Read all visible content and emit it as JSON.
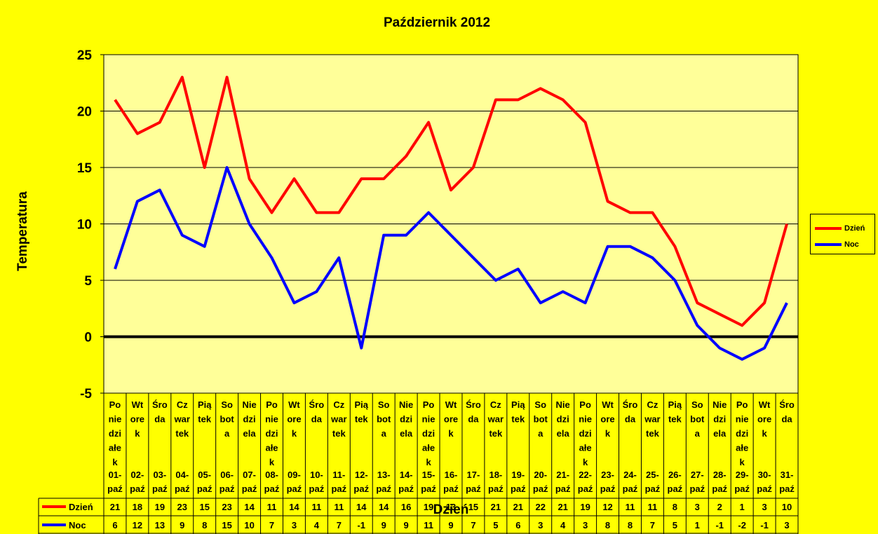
{
  "chart_data": {
    "type": "line",
    "title": "Październik 2012",
    "xlabel": "Dzień",
    "ylabel": "Temperatura",
    "ylim": [
      -5,
      25
    ],
    "yticks": [
      -5,
      0,
      5,
      10,
      15,
      20,
      25
    ],
    "grid": true,
    "legend_position": "right",
    "day_names": [
      [
        "Po",
        "nie",
        "dzi",
        "ałe",
        "k"
      ],
      [
        "Wt",
        "ore",
        "k"
      ],
      [
        "Śro",
        "da"
      ],
      [
        "Cz",
        "war",
        "tek"
      ],
      [
        "Pią",
        "tek"
      ],
      [
        "So",
        "bot",
        "a"
      ],
      [
        "Nie",
        "dzi",
        "ela"
      ],
      [
        "Po",
        "nie",
        "dzi",
        "ałe",
        "k"
      ],
      [
        "Wt",
        "ore",
        "k"
      ],
      [
        "Śro",
        "da"
      ],
      [
        "Cz",
        "war",
        "tek"
      ],
      [
        "Pią",
        "tek"
      ],
      [
        "So",
        "bot",
        "a"
      ],
      [
        "Nie",
        "dzi",
        "ela"
      ],
      [
        "Po",
        "nie",
        "dzi",
        "ałe",
        "k"
      ],
      [
        "Wt",
        "ore",
        "k"
      ],
      [
        "Śro",
        "da"
      ],
      [
        "Cz",
        "war",
        "tek"
      ],
      [
        "Pią",
        "tek"
      ],
      [
        "So",
        "bot",
        "a"
      ],
      [
        "Nie",
        "dzi",
        "ela"
      ],
      [
        "Po",
        "nie",
        "dzi",
        "ałe",
        "k"
      ],
      [
        "Wt",
        "ore",
        "k"
      ],
      [
        "Śro",
        "da"
      ],
      [
        "Cz",
        "war",
        "tek"
      ],
      [
        "Pią",
        "tek"
      ],
      [
        "So",
        "bot",
        "a"
      ],
      [
        "Nie",
        "dzi",
        "ela"
      ],
      [
        "Po",
        "nie",
        "dzi",
        "ałe",
        "k"
      ],
      [
        "Wt",
        "ore",
        "k"
      ],
      [
        "Śro",
        "da"
      ]
    ],
    "dates": [
      [
        "01-",
        "paź"
      ],
      [
        "02-",
        "paź"
      ],
      [
        "03-",
        "paź"
      ],
      [
        "04-",
        "paź"
      ],
      [
        "05-",
        "paź"
      ],
      [
        "06-",
        "paź"
      ],
      [
        "07-",
        "paź"
      ],
      [
        "08-",
        "paź"
      ],
      [
        "09-",
        "paź"
      ],
      [
        "10-",
        "paź"
      ],
      [
        "11-",
        "paź"
      ],
      [
        "12-",
        "paź"
      ],
      [
        "13-",
        "paź"
      ],
      [
        "14-",
        "paź"
      ],
      [
        "15-",
        "paź"
      ],
      [
        "16-",
        "paź"
      ],
      [
        "17-",
        "paź"
      ],
      [
        "18-",
        "paź"
      ],
      [
        "19-",
        "paź"
      ],
      [
        "20-",
        "paź"
      ],
      [
        "21-",
        "paź"
      ],
      [
        "22-",
        "paź"
      ],
      [
        "23-",
        "paź"
      ],
      [
        "24-",
        "paź"
      ],
      [
        "25-",
        "paź"
      ],
      [
        "26-",
        "paź"
      ],
      [
        "27-",
        "paź"
      ],
      [
        "28-",
        "paź"
      ],
      [
        "29-",
        "paź"
      ],
      [
        "30-",
        "paź"
      ],
      [
        "31-",
        "paź"
      ]
    ],
    "series": [
      {
        "name": "Dzień",
        "color": "#FF0000",
        "values": [
          21,
          18,
          19,
          23,
          15,
          23,
          14,
          11,
          14,
          11,
          11,
          14,
          14,
          16,
          19,
          13,
          15,
          21,
          21,
          22,
          21,
          19,
          12,
          11,
          11,
          8,
          3,
          2,
          1,
          3,
          10
        ]
      },
      {
        "name": "Noc",
        "color": "#0000FF",
        "values": [
          6,
          12,
          13,
          9,
          8,
          15,
          10,
          7,
          3,
          4,
          7,
          -1,
          9,
          9,
          11,
          9,
          7,
          5,
          6,
          3,
          4,
          3,
          8,
          8,
          7,
          5,
          1,
          -1,
          -2,
          -1,
          3
        ]
      }
    ]
  }
}
